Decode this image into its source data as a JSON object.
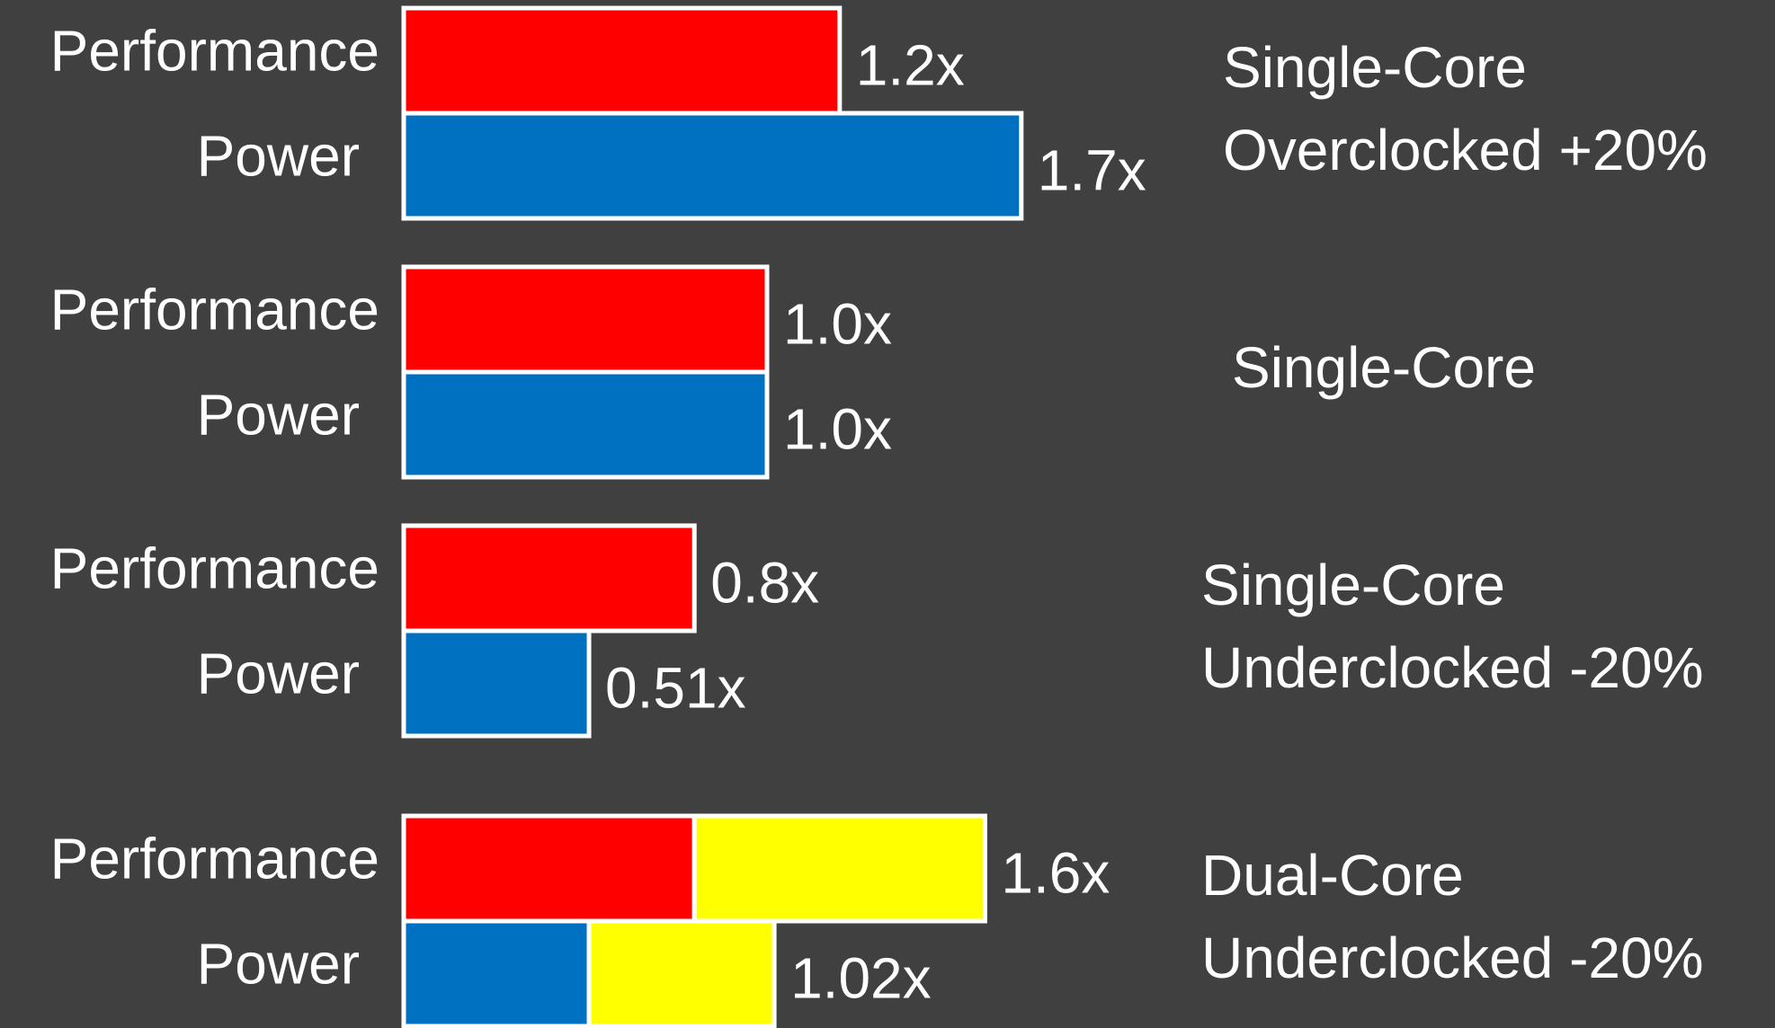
{
  "chart_data": {
    "type": "bar",
    "orientation": "horizontal",
    "groups": [
      {
        "label": [
          "Single-Core",
          "Overclocked +20%"
        ],
        "bars": [
          {
            "name": "Performance",
            "segments": [
              {
                "value": 1.2,
                "color": "#ff0000"
              }
            ],
            "value_label": "1.2x"
          },
          {
            "name": "Power",
            "segments": [
              {
                "value": 1.7,
                "color": "#0070c0"
              }
            ],
            "value_label": "1.7x"
          }
        ]
      },
      {
        "label": [
          "Single-Core"
        ],
        "bars": [
          {
            "name": "Performance",
            "segments": [
              {
                "value": 1.0,
                "color": "#ff0000"
              }
            ],
            "value_label": "1.0x"
          },
          {
            "name": "Power",
            "segments": [
              {
                "value": 1.0,
                "color": "#0070c0"
              }
            ],
            "value_label": "1.0x"
          }
        ]
      },
      {
        "label": [
          "Single-Core",
          "Underclocked -20%"
        ],
        "bars": [
          {
            "name": "Performance",
            "segments": [
              {
                "value": 0.8,
                "color": "#ff0000"
              }
            ],
            "value_label": "0.8x"
          },
          {
            "name": "Power",
            "segments": [
              {
                "value": 0.51,
                "color": "#0070c0"
              }
            ],
            "value_label": "0.51x"
          }
        ]
      },
      {
        "label": [
          "Dual-Core",
          "Underclocked -20%"
        ],
        "bars": [
          {
            "name": "Performance",
            "segments": [
              {
                "value": 0.8,
                "color": "#ff0000"
              },
              {
                "value": 0.8,
                "color": "#ffff00"
              }
            ],
            "total": 1.6,
            "value_label": "1.6x"
          },
          {
            "name": "Power",
            "segments": [
              {
                "value": 0.51,
                "color": "#0070c0"
              },
              {
                "value": 0.51,
                "color": "#ffff00"
              }
            ],
            "total": 1.02,
            "value_label": "1.02x"
          }
        ]
      }
    ]
  }
}
